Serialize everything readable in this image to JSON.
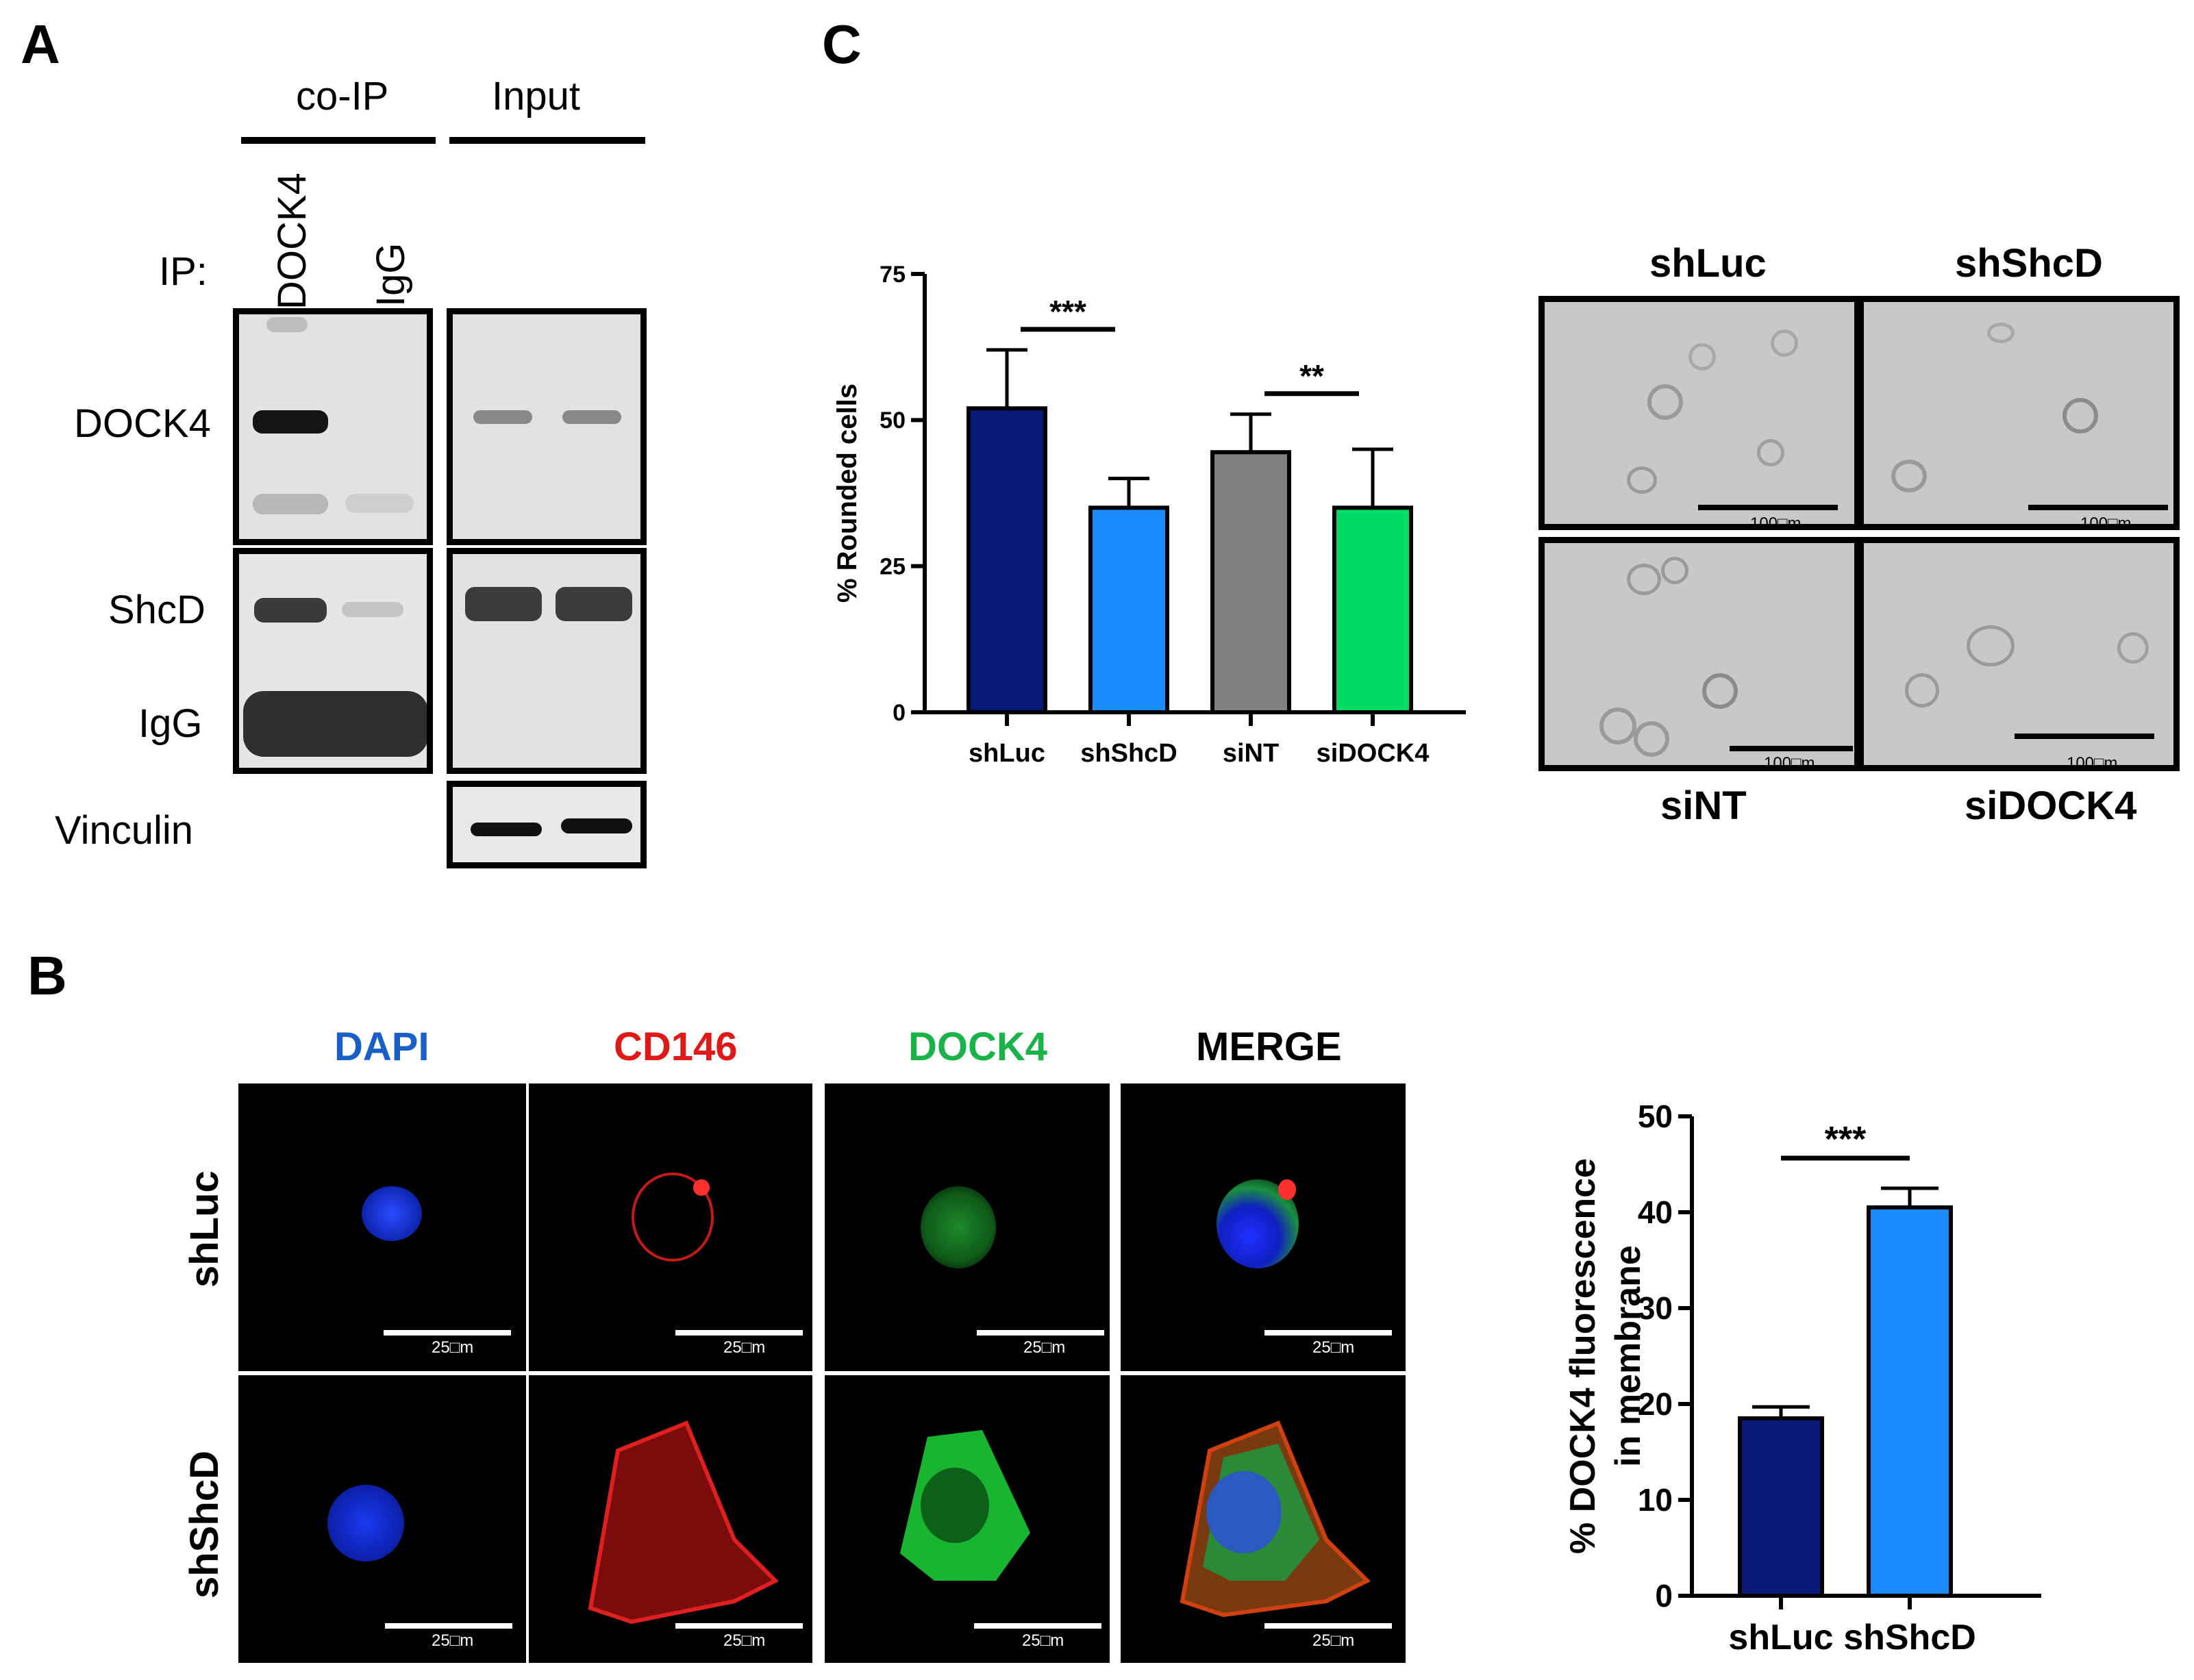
{
  "panels": {
    "a": "A",
    "b": "B",
    "c": "C"
  },
  "panel_a": {
    "header_coip": "co-IP",
    "header_input": "Input",
    "ip_label": "IP:",
    "lane_dock4": "DOCK4",
    "lane_igg": "IgG",
    "row_dock4": "DOCK4",
    "row_shcd": "ShcD",
    "row_igg": "IgG",
    "row_vinculin": "Vinculin"
  },
  "panel_b": {
    "channels": [
      {
        "label": "DAPI",
        "color": "#1a5fc9"
      },
      {
        "label": "CD146",
        "color": "#e01818"
      },
      {
        "label": "DOCK4",
        "color": "#19b34a"
      },
      {
        "label": "MERGE",
        "color": "#000000"
      }
    ],
    "rows": [
      "shLuc",
      "shShcD"
    ],
    "scale_text": "25□m"
  },
  "panel_c_images": {
    "top_labels": [
      "shLuc",
      "shShcD"
    ],
    "bottom_labels": [
      "siNT",
      "siDOCK4"
    ],
    "scale_text": "100□m"
  },
  "chart_data": [
    {
      "type": "bar",
      "categories": [
        "shLuc",
        "shShcD",
        "siNT",
        "siDOCK4"
      ],
      "values": [
        52,
        35,
        44.5,
        35
      ],
      "errors": [
        10,
        5,
        6.5,
        10
      ],
      "colors": [
        "#0a1a7a",
        "#1a8cff",
        "#808080",
        "#00dd66"
      ],
      "ylabel": "% Rounded cells",
      "xlabel": "",
      "ylim": [
        0,
        75
      ],
      "yticks": [
        0,
        25,
        50,
        75
      ],
      "significance": [
        {
          "from": 0,
          "to": 1,
          "label": "***"
        },
        {
          "from": 2,
          "to": 3,
          "label": "**"
        }
      ]
    },
    {
      "type": "bar",
      "categories": [
        "shLuc",
        "shShcD"
      ],
      "values": [
        18.5,
        40.5
      ],
      "errors": [
        1.2,
        2
      ],
      "colors": [
        "#0a1a7a",
        "#1a8cff"
      ],
      "ylabel": "% DOCK4 fluorescence in membrane",
      "ylabel_lines": [
        "% DOCK4 fluorescence",
        "in membrane"
      ],
      "xlabel": "",
      "ylim": [
        0,
        50
      ],
      "yticks": [
        0,
        10,
        20,
        30,
        40,
        50
      ],
      "significance": [
        {
          "from": 0,
          "to": 1,
          "label": "***"
        }
      ]
    }
  ]
}
